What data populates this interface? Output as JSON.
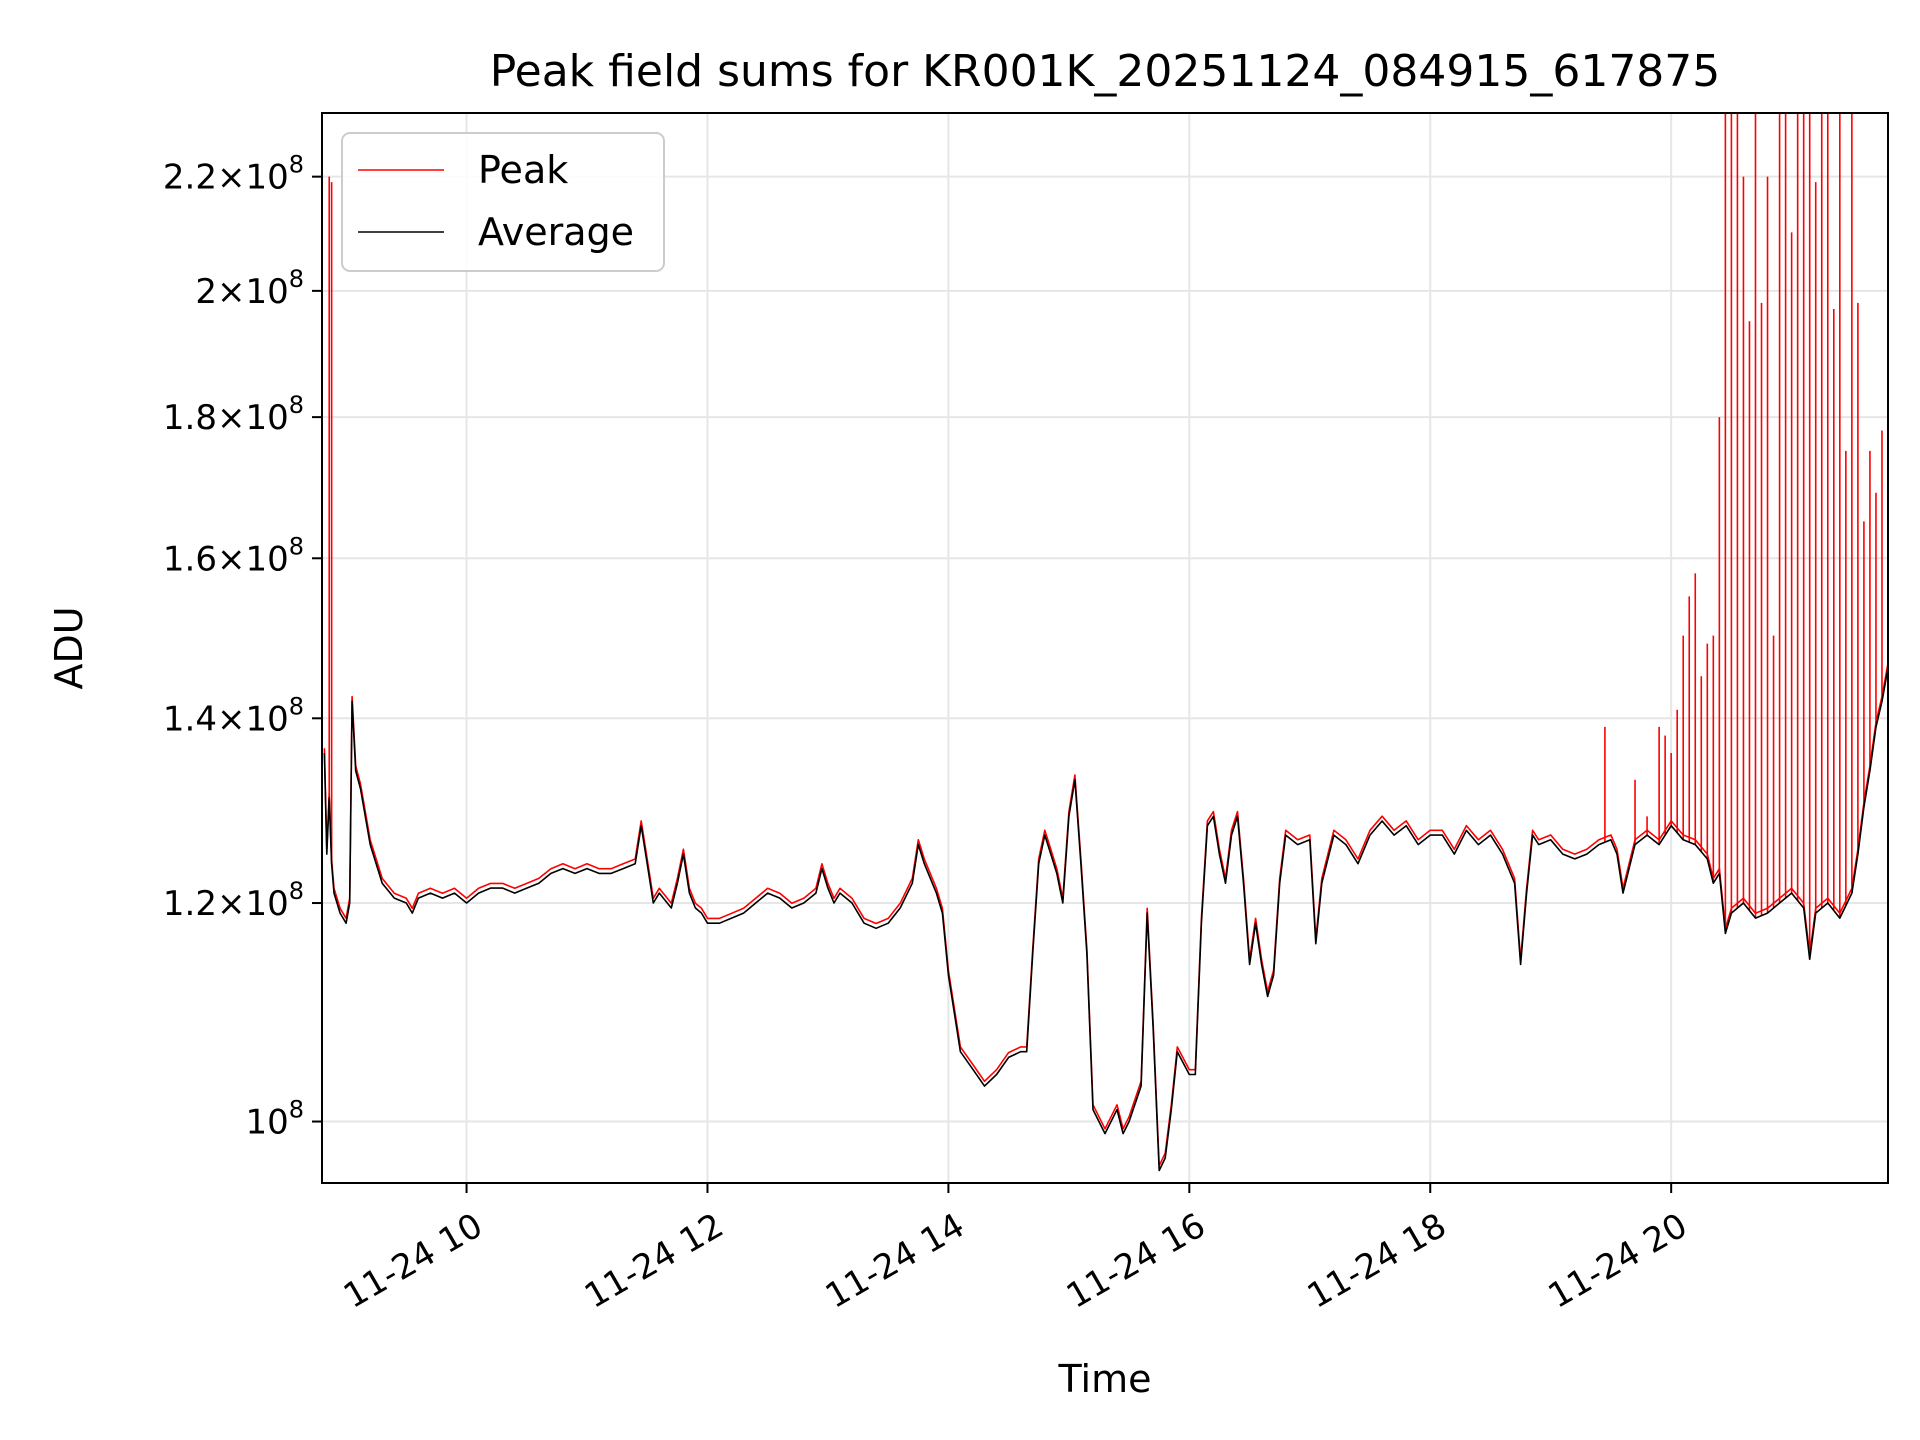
{
  "chart_data": {
    "type": "line",
    "title": "Peak field sums for KR001K_20251124_084915_617875",
    "xlabel": "Time",
    "ylabel": "ADU",
    "yscale": "log",
    "xlim": [
      8.8,
      21.8
    ],
    "ylim": [
      95000000,
      232000000
    ],
    "grid": true,
    "legend_position": "top-left",
    "x_ticks": [
      {
        "value": 10,
        "label": "11-24 10"
      },
      {
        "value": 12,
        "label": "11-24 12"
      },
      {
        "value": 14,
        "label": "11-24 14"
      },
      {
        "value": 16,
        "label": "11-24 16"
      },
      {
        "value": 18,
        "label": "11-24 18"
      },
      {
        "value": 20,
        "label": "11-24 20"
      }
    ],
    "y_ticks": [
      {
        "value": 100000000,
        "mantissa": "",
        "exponent": "8"
      },
      {
        "value": 120000000,
        "mantissa": "1.2",
        "exponent": "8"
      },
      {
        "value": 140000000,
        "mantissa": "1.4",
        "exponent": "8"
      },
      {
        "value": 160000000,
        "mantissa": "1.6",
        "exponent": "8"
      },
      {
        "value": 180000000,
        "mantissa": "1.8",
        "exponent": "8"
      },
      {
        "value": 200000000,
        "mantissa": "2",
        "exponent": "8"
      },
      {
        "value": 220000000,
        "mantissa": "2.2",
        "exponent": "8"
      }
    ],
    "series": [
      {
        "name": "Peak",
        "color": "#ff0000"
      },
      {
        "name": "Average",
        "color": "#000000"
      }
    ],
    "average_points": [
      [
        8.82,
        136000000
      ],
      [
        8.84,
        125000000
      ],
      [
        8.86,
        131000000
      ],
      [
        8.88,
        124000000
      ],
      [
        8.9,
        121000000
      ],
      [
        8.95,
        119000000
      ],
      [
        9.0,
        118000000
      ],
      [
        9.03,
        120000000
      ],
      [
        9.05,
        142000000
      ],
      [
        9.08,
        134000000
      ],
      [
        9.12,
        132000000
      ],
      [
        9.2,
        126000000
      ],
      [
        9.3,
        122000000
      ],
      [
        9.4,
        120500000
      ],
      [
        9.5,
        120000000
      ],
      [
        9.55,
        119000000
      ],
      [
        9.6,
        120500000
      ],
      [
        9.7,
        121000000
      ],
      [
        9.8,
        120500000
      ],
      [
        9.9,
        121000000
      ],
      [
        10.0,
        120000000
      ],
      [
        10.1,
        121000000
      ],
      [
        10.2,
        121500000
      ],
      [
        10.3,
        121500000
      ],
      [
        10.4,
        121000000
      ],
      [
        10.5,
        121500000
      ],
      [
        10.6,
        122000000
      ],
      [
        10.7,
        123000000
      ],
      [
        10.8,
        123500000
      ],
      [
        10.9,
        123000000
      ],
      [
        11.0,
        123500000
      ],
      [
        11.1,
        123000000
      ],
      [
        11.2,
        123000000
      ],
      [
        11.3,
        123500000
      ],
      [
        11.4,
        124000000
      ],
      [
        11.45,
        128000000
      ],
      [
        11.5,
        124000000
      ],
      [
        11.55,
        120000000
      ],
      [
        11.6,
        121000000
      ],
      [
        11.7,
        119500000
      ],
      [
        11.75,
        122000000
      ],
      [
        11.8,
        125000000
      ],
      [
        11.85,
        121000000
      ],
      [
        11.9,
        119500000
      ],
      [
        11.95,
        119000000
      ],
      [
        12.0,
        118000000
      ],
      [
        12.1,
        118000000
      ],
      [
        12.2,
        118500000
      ],
      [
        12.3,
        119000000
      ],
      [
        12.4,
        120000000
      ],
      [
        12.5,
        121000000
      ],
      [
        12.6,
        120500000
      ],
      [
        12.7,
        119500000
      ],
      [
        12.8,
        120000000
      ],
      [
        12.9,
        121000000
      ],
      [
        12.95,
        123500000
      ],
      [
        13.0,
        121500000
      ],
      [
        13.05,
        120000000
      ],
      [
        13.1,
        121000000
      ],
      [
        13.2,
        120000000
      ],
      [
        13.3,
        118000000
      ],
      [
        13.4,
        117500000
      ],
      [
        13.5,
        118000000
      ],
      [
        13.6,
        119500000
      ],
      [
        13.7,
        122000000
      ],
      [
        13.75,
        126000000
      ],
      [
        13.8,
        124000000
      ],
      [
        13.9,
        121000000
      ],
      [
        13.95,
        119000000
      ],
      [
        14.0,
        113000000
      ],
      [
        14.1,
        106000000
      ],
      [
        14.2,
        104500000
      ],
      [
        14.3,
        103000000
      ],
      [
        14.4,
        104000000
      ],
      [
        14.5,
        105500000
      ],
      [
        14.6,
        106000000
      ],
      [
        14.65,
        106000000
      ],
      [
        14.7,
        115000000
      ],
      [
        14.75,
        124000000
      ],
      [
        14.8,
        127000000
      ],
      [
        14.85,
        125000000
      ],
      [
        14.9,
        123000000
      ],
      [
        14.95,
        120000000
      ],
      [
        15.0,
        129000000
      ],
      [
        15.05,
        133000000
      ],
      [
        15.1,
        124000000
      ],
      [
        15.15,
        115000000
      ],
      [
        15.2,
        101000000
      ],
      [
        15.3,
        99000000
      ],
      [
        15.4,
        101000000
      ],
      [
        15.45,
        99000000
      ],
      [
        15.5,
        100000000
      ],
      [
        15.6,
        103000000
      ],
      [
        15.65,
        119000000
      ],
      [
        15.7,
        108000000
      ],
      [
        15.75,
        96000000
      ],
      [
        15.8,
        97000000
      ],
      [
        15.85,
        101000000
      ],
      [
        15.9,
        106000000
      ],
      [
        16.0,
        104000000
      ],
      [
        16.05,
        104000000
      ],
      [
        16.1,
        118000000
      ],
      [
        16.15,
        128000000
      ],
      [
        16.2,
        129000000
      ],
      [
        16.25,
        125000000
      ],
      [
        16.3,
        122000000
      ],
      [
        16.35,
        127000000
      ],
      [
        16.4,
        129000000
      ],
      [
        16.45,
        122000000
      ],
      [
        16.5,
        114000000
      ],
      [
        16.55,
        118000000
      ],
      [
        16.6,
        114000000
      ],
      [
        16.65,
        111000000
      ],
      [
        16.7,
        113000000
      ],
      [
        16.75,
        122000000
      ],
      [
        16.8,
        127000000
      ],
      [
        16.9,
        126000000
      ],
      [
        17.0,
        126500000
      ],
      [
        17.05,
        116000000
      ],
      [
        17.1,
        122000000
      ],
      [
        17.2,
        127000000
      ],
      [
        17.3,
        126000000
      ],
      [
        17.4,
        124000000
      ],
      [
        17.5,
        127000000
      ],
      [
        17.6,
        128500000
      ],
      [
        17.7,
        127000000
      ],
      [
        17.8,
        128000000
      ],
      [
        17.9,
        126000000
      ],
      [
        18.0,
        127000000
      ],
      [
        18.1,
        127000000
      ],
      [
        18.2,
        125000000
      ],
      [
        18.3,
        127500000
      ],
      [
        18.4,
        126000000
      ],
      [
        18.5,
        127000000
      ],
      [
        18.6,
        125000000
      ],
      [
        18.7,
        122000000
      ],
      [
        18.75,
        114000000
      ],
      [
        18.8,
        121000000
      ],
      [
        18.85,
        127000000
      ],
      [
        18.9,
        126000000
      ],
      [
        19.0,
        126500000
      ],
      [
        19.1,
        125000000
      ],
      [
        19.2,
        124500000
      ],
      [
        19.3,
        125000000
      ],
      [
        19.4,
        126000000
      ],
      [
        19.5,
        126500000
      ],
      [
        19.55,
        125000000
      ],
      [
        19.6,
        121000000
      ],
      [
        19.7,
        126000000
      ],
      [
        19.8,
        127000000
      ],
      [
        19.9,
        126000000
      ],
      [
        20.0,
        128000000
      ],
      [
        20.1,
        126500000
      ],
      [
        20.2,
        126000000
      ],
      [
        20.3,
        124500000
      ],
      [
        20.35,
        122000000
      ],
      [
        20.4,
        123000000
      ],
      [
        20.45,
        117000000
      ],
      [
        20.5,
        119000000
      ],
      [
        20.6,
        120000000
      ],
      [
        20.7,
        118500000
      ],
      [
        20.8,
        119000000
      ],
      [
        20.9,
        120000000
      ],
      [
        21.0,
        121000000
      ],
      [
        21.1,
        119500000
      ],
      [
        21.15,
        114500000
      ],
      [
        21.2,
        119000000
      ],
      [
        21.3,
        120000000
      ],
      [
        21.4,
        118500000
      ],
      [
        21.5,
        121000000
      ],
      [
        21.55,
        125000000
      ],
      [
        21.6,
        130000000
      ],
      [
        21.65,
        134000000
      ],
      [
        21.7,
        139000000
      ],
      [
        21.75,
        142000000
      ],
      [
        21.8,
        146000000
      ]
    ],
    "peak_spikes": [
      [
        8.86,
        220000000
      ],
      [
        8.88,
        219000000
      ],
      [
        19.45,
        139000000
      ],
      [
        19.7,
        133000000
      ],
      [
        19.8,
        129000000
      ],
      [
        19.9,
        139000000
      ],
      [
        19.95,
        138000000
      ],
      [
        20.0,
        136000000
      ],
      [
        20.05,
        141000000
      ],
      [
        20.1,
        150000000
      ],
      [
        20.15,
        155000000
      ],
      [
        20.2,
        158000000
      ],
      [
        20.25,
        145000000
      ],
      [
        20.3,
        149000000
      ],
      [
        20.35,
        150000000
      ],
      [
        20.4,
        180000000
      ],
      [
        20.45,
        232000000
      ],
      [
        20.5,
        232000000
      ],
      [
        20.55,
        232000000
      ],
      [
        20.6,
        220000000
      ],
      [
        20.65,
        195000000
      ],
      [
        20.7,
        232000000
      ],
      [
        20.75,
        198000000
      ],
      [
        20.8,
        220000000
      ],
      [
        20.85,
        150000000
      ],
      [
        20.9,
        232000000
      ],
      [
        20.95,
        232000000
      ],
      [
        21.0,
        210000000
      ],
      [
        21.05,
        232000000
      ],
      [
        21.1,
        232000000
      ],
      [
        21.15,
        232000000
      ],
      [
        21.2,
        219000000
      ],
      [
        21.25,
        232000000
      ],
      [
        21.3,
        232000000
      ],
      [
        21.35,
        197000000
      ],
      [
        21.4,
        232000000
      ],
      [
        21.45,
        175000000
      ],
      [
        21.5,
        232000000
      ],
      [
        21.55,
        198000000
      ],
      [
        21.6,
        165000000
      ],
      [
        21.65,
        175000000
      ],
      [
        21.7,
        169000000
      ],
      [
        21.75,
        178000000
      ]
    ]
  }
}
